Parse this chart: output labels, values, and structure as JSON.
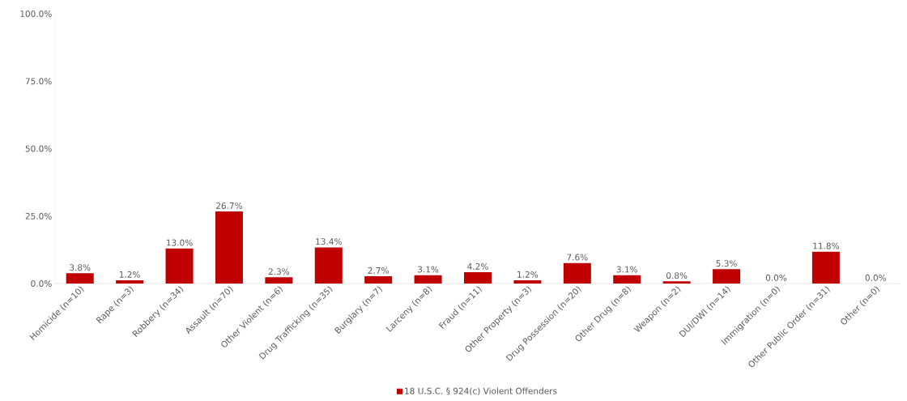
{
  "chart_data": {
    "type": "bar",
    "categories": [
      "Homicide (n=10)",
      "Rape (n=3)",
      "Robbery (n=34)",
      "Assault (n=70)",
      "Other Violent (n=6)",
      "Drug Trafficking (n=35)",
      "Burglary (n=7)",
      "Larceny (n=8)",
      "Fraud (n=11)",
      "Other Property (n=3)",
      "Drug Possession (n=20)",
      "Other Drug (n=8)",
      "Weapon (n=2)",
      "DUI/DWI (n=14)",
      "Immigration (n=0)",
      "Other Public Order (n=31)",
      "Other (n=0)"
    ],
    "series": [
      {
        "name": "18 U.S.C. § 924(c) Violent Offenders",
        "color": "#c00000",
        "values": [
          3.8,
          1.2,
          13.0,
          26.7,
          2.3,
          13.4,
          2.7,
          3.1,
          4.2,
          1.2,
          7.6,
          3.1,
          0.8,
          5.3,
          0.0,
          11.8,
          0.0
        ],
        "value_labels": [
          "3.8%",
          "1.2%",
          "13.0%",
          "26.7%",
          "2.3%",
          "13.4%",
          "2.7%",
          "3.1%",
          "4.2%",
          "1.2%",
          "7.6%",
          "3.1%",
          "0.8%",
          "5.3%",
          "0.0%",
          "11.8%",
          "0.0%"
        ]
      }
    ],
    "ylim": [
      0,
      100
    ],
    "yticks": [
      {
        "value": 0,
        "label": "0.0%"
      },
      {
        "value": 25,
        "label": "25.0%"
      },
      {
        "value": 50,
        "label": "50.0%"
      },
      {
        "value": 75,
        "label": "75.0%"
      },
      {
        "value": 100,
        "label": "100.0%"
      }
    ],
    "legend": "bottom"
  }
}
